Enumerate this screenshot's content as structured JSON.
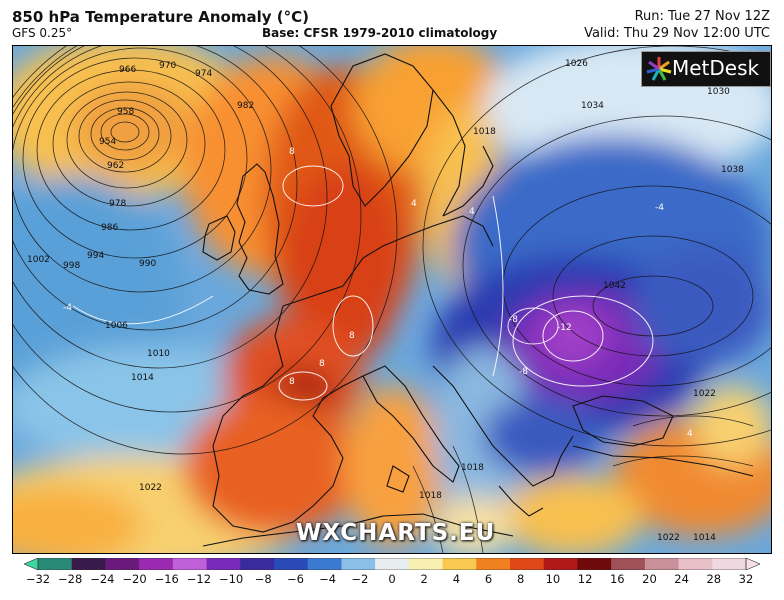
{
  "header": {
    "title": "850 hPa Temperature Anomaly (°C)",
    "model": "GFS 0.25°",
    "base": "Base: CFSR 1979-2010 climatology",
    "run": "Run: Tue 27 Nov 12Z",
    "valid": "Valid: Thu 29 Nov 12:00 UTC"
  },
  "logo": {
    "text": "MetDesk",
    "icon": "metdesk-burst-icon"
  },
  "watermark": "WXCHARTS.EU",
  "colorbar": {
    "ticks": [
      "−32",
      "−28",
      "−24",
      "−20",
      "−16",
      "−12",
      "−10",
      "−8",
      "−6",
      "−4",
      "−2",
      "0",
      "2",
      "4",
      "6",
      "8",
      "10",
      "12",
      "16",
      "20",
      "24",
      "28",
      "32"
    ],
    "colors": [
      "#3cd6a0",
      "#2a8a78",
      "#3a1a4a",
      "#6a1a7a",
      "#9a2ab0",
      "#c060d8",
      "#7a2ab8",
      "#3a2aa0",
      "#2a4ab8",
      "#3a7ad0",
      "#8ac0e8",
      "#e8eef0",
      "#f8f0b0",
      "#f8c850",
      "#f08020",
      "#e04818",
      "#b01818",
      "#700a0a",
      "#a05058",
      "#c89098",
      "#e8c0c8",
      "#f0d8e0",
      "#f8e0ea"
    ]
  },
  "isobars": {
    "low_labels": [
      "966",
      "970",
      "974",
      "958",
      "954",
      "962",
      "978",
      "986",
      "982",
      "990",
      "994",
      "998",
      "1002",
      "1006",
      "1010",
      "1014",
      "1018",
      "1022"
    ],
    "high_labels": [
      "1026",
      "1030",
      "1034",
      "1038",
      "1042",
      "1022",
      "1018",
      "1014",
      "1018",
      "1022"
    ]
  },
  "anomaly_labels": [
    "8",
    "4",
    "8",
    "8",
    "-4",
    "-8",
    "-12",
    "-8",
    "4",
    "-4",
    "8",
    "4"
  ]
}
